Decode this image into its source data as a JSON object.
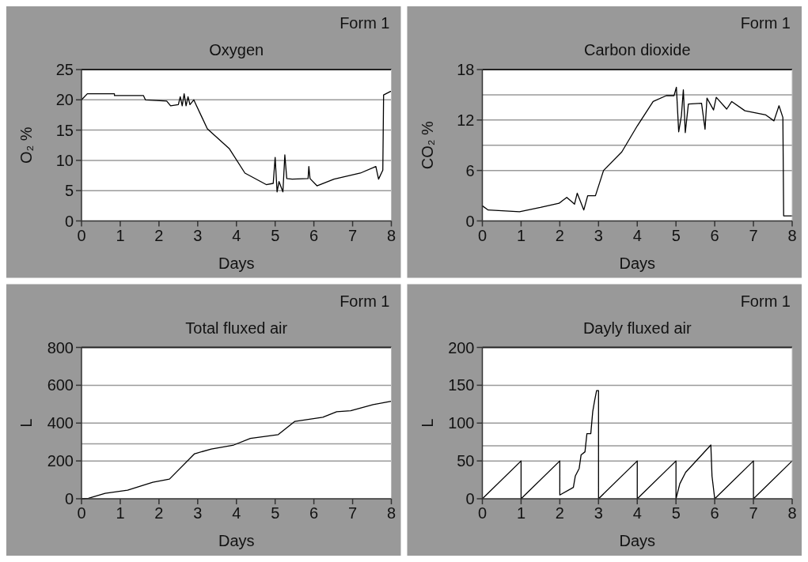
{
  "chart_data": [
    {
      "type": "line",
      "title": "Oxygen",
      "xlabel": "Days",
      "ylabel": "O₂ %",
      "annotations": [
        "Form 1"
      ],
      "xlim": [
        0,
        8
      ],
      "xticks": [
        0,
        1,
        2,
        3,
        4,
        5,
        6,
        7,
        8
      ],
      "ylim": [
        0,
        25
      ],
      "yticks": [
        0,
        5,
        10,
        15,
        20,
        25
      ],
      "grid": "y",
      "series": [
        {
          "color": "#000000",
          "x": [
            0,
            0.15,
            0.85,
            0.85,
            1.6,
            1.65,
            2.2,
            2.3,
            2.5,
            2.55,
            2.6,
            2.65,
            2.7,
            2.75,
            2.8,
            2.9,
            2.95,
            3.25,
            3.82,
            4.22,
            4.77,
            4.95,
            5.0,
            5.05,
            5.1,
            5.2,
            5.25,
            5.3,
            5.44,
            5.85,
            5.87,
            5.9,
            6.08,
            6.52,
            7.2,
            7.6,
            7.67,
            7.78,
            7.8,
            7.98
          ],
          "values": [
            20,
            21,
            21,
            20.7,
            20.7,
            20,
            19.8,
            19,
            19.2,
            20.5,
            19,
            21,
            19,
            20.5,
            19.2,
            20,
            19.3,
            15.2,
            11.9,
            7.9,
            6,
            6.2,
            10.5,
            4.8,
            6.5,
            4.8,
            10.9,
            7,
            6.9,
            7,
            9,
            7,
            5.8,
            6.9,
            7.9,
            9,
            6.9,
            8.4,
            20.8,
            21.4
          ]
        }
      ]
    },
    {
      "type": "line",
      "title": "Carbon dioxide",
      "xlabel": "Days",
      "ylabel": "CO₂ %",
      "annotations": [
        "Form 1"
      ],
      "xlim": [
        0,
        8
      ],
      "xticks": [
        0,
        1,
        2,
        3,
        4,
        5,
        6,
        7,
        8
      ],
      "ylim": [
        0,
        18
      ],
      "yticks": [
        0,
        6,
        12,
        18
      ],
      "grid": "y",
      "ref_lines": [
        {
          "axis": "y",
          "value": 9
        },
        {
          "axis": "y",
          "value": 15
        }
      ],
      "series": [
        {
          "color": "#000000",
          "x": [
            0,
            0.15,
            0.96,
            1.5,
            1.98,
            2.18,
            2.38,
            2.45,
            2.62,
            2.72,
            2.92,
            3.13,
            3.6,
            4.0,
            4.41,
            4.75,
            4.95,
            5.01,
            5.07,
            5.14,
            5.19,
            5.24,
            5.32,
            5.66,
            5.75,
            5.8,
            5.97,
            6.04,
            6.31,
            6.44,
            6.78,
            7.32,
            7.53,
            7.66,
            7.76,
            7.78,
            8
          ],
          "values": [
            1.8,
            1.3,
            1.1,
            1.6,
            2.1,
            2.8,
            2,
            3.3,
            1.3,
            3,
            3,
            6,
            8.2,
            11.3,
            14.2,
            14.9,
            14.9,
            15.9,
            10.6,
            12.5,
            15.6,
            10.5,
            13.9,
            14,
            10.9,
            14.6,
            13.2,
            14.7,
            13.3,
            14.2,
            13.1,
            12.6,
            11.9,
            13.7,
            12.3,
            0.6,
            0.6
          ]
        }
      ]
    },
    {
      "type": "line",
      "title": "Total fluxed air",
      "xlabel": "Days",
      "ylabel": "L",
      "annotations": [
        "Form 1"
      ],
      "xlim": [
        0,
        8
      ],
      "xticks": [
        0,
        1,
        2,
        3,
        4,
        5,
        6,
        7,
        8
      ],
      "ylim": [
        0,
        800
      ],
      "yticks": [
        0,
        200,
        400,
        600,
        800
      ],
      "grid": "y",
      "ref_lines": [
        {
          "axis": "y",
          "value": 290
        }
      ],
      "series": [
        {
          "color": "#000000",
          "x": [
            0,
            0.18,
            0.61,
            1.19,
            1.84,
            2.27,
            2.92,
            3.35,
            3.93,
            4.36,
            5.08,
            5.51,
            6.23,
            6.59,
            6.95,
            7.53,
            8
          ],
          "values": [
            0,
            3,
            29,
            45,
            87,
            104,
            238,
            263,
            284,
            319,
            339,
            409,
            431,
            460,
            465,
            498,
            515
          ]
        }
      ]
    },
    {
      "type": "line",
      "title": "Dayly fluxed air",
      "xlabel": "Days",
      "ylabel": "L",
      "annotations": [
        "Form 1"
      ],
      "xlim": [
        0,
        8
      ],
      "xticks": [
        0,
        1,
        2,
        3,
        4,
        5,
        6,
        7,
        8
      ],
      "ylim": [
        0,
        200
      ],
      "yticks": [
        0,
        50,
        100,
        150,
        200
      ],
      "grid": "y",
      "ref_lines": [
        {
          "axis": "y",
          "value": 70
        }
      ],
      "series": [
        {
          "color": "#000000",
          "x": [
            0,
            1,
            1,
            2,
            2,
            2.35,
            2.4,
            2.5,
            2.55,
            2.65,
            2.7,
            2.8,
            2.85,
            2.9,
            2.95,
            3,
            3,
            4,
            4,
            5,
            5,
            5.1,
            5.25,
            5.9,
            5.93,
            6,
            7,
            7,
            8
          ],
          "values": [
            0,
            50,
            0,
            50,
            5,
            15,
            30,
            40,
            58,
            62,
            86,
            86,
            115,
            130,
            143,
            143,
            0,
            50,
            0,
            50,
            0,
            20,
            35,
            71,
            30,
            0,
            50,
            0,
            50
          ]
        }
      ]
    }
  ]
}
